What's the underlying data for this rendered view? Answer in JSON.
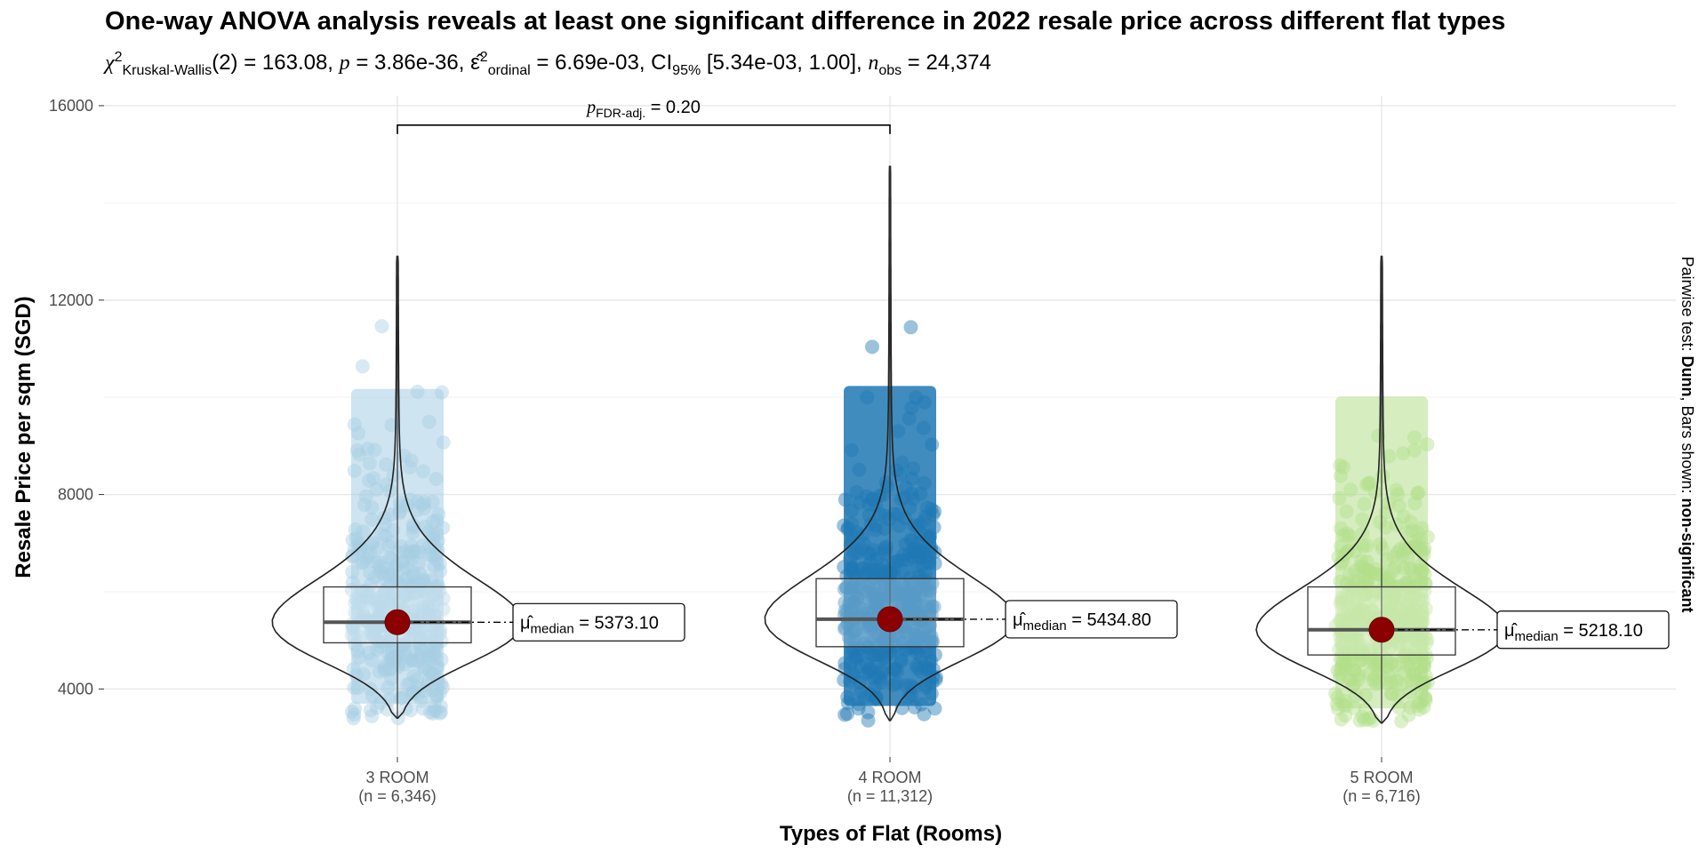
{
  "title": "One-way ANOVA analysis reveals at least one significant difference in 2022 resale price across different flat types",
  "subtitle": {
    "chi_symbol": "χ",
    "chi_sup": "2",
    "chi_sub": "Kruskal-Wallis",
    "df_text": "(2) = 163.08, ",
    "p_symbol": "p",
    "p_text": " = 3.86e-36, ",
    "eps_symbol": "ε̂",
    "eps_sup": "2",
    "eps_sub": "ordinal",
    "eps_text": " = 6.69e-03, CI",
    "ci_sub": "95%",
    "ci_text": " [5.34e-03, 1.00], ",
    "n_symbol": "n",
    "n_sub": "obs",
    "n_text": " = 24,374"
  },
  "caption": {
    "prefix": "Pairwise test: ",
    "test": "Dunn",
    "middle": ", Bars shown: ",
    "shown": "non-significant"
  },
  "pairwise": {
    "p_symbol": "p",
    "p_sub": "FDR-adj.",
    "p_text": " = 0.20"
  },
  "chart_data": {
    "type": "violin-box-scatter",
    "title": "One-way ANOVA analysis reveals at least one significant difference in 2022 resale price across different flat types",
    "xlabel": "Types of Flat (Rooms)",
    "ylabel": "Resale Price per sqm (SGD)",
    "ylim": [
      2600,
      16200
    ],
    "yticks": [
      4000,
      8000,
      12000,
      16000
    ],
    "grid": true,
    "categories": [
      "3 ROOM",
      "4 ROOM",
      "5 ROOM"
    ],
    "n_labels": [
      "(n = 6,346)",
      "(n = 11,312)",
      "(n = 6,716)"
    ],
    "colors": [
      "#a6cee3",
      "#1f78b4",
      "#b2df8a"
    ],
    "median_point_color": "#8b0000",
    "groups": [
      {
        "name": "3 ROOM",
        "n": 6346,
        "median": 5373.1,
        "q1": 4950,
        "q3": 6100,
        "min": 3400,
        "max": 12900,
        "median_label": "= 5373.10"
      },
      {
        "name": "4 ROOM",
        "n": 11312,
        "median": 5434.8,
        "q1": 4870,
        "q3": 6270,
        "min": 3350,
        "max": 14750,
        "median_label": "= 5434.80"
      },
      {
        "name": "5 ROOM",
        "n": 6716,
        "median": 5218.1,
        "q1": 4700,
        "q3": 6100,
        "min": 3300,
        "max": 12900,
        "median_label": "= 5218.10"
      }
    ],
    "median_label_symbol": "μ̂",
    "median_label_sub": "median",
    "comparisons": [
      {
        "groups": [
          "3 ROOM",
          "4 ROOM"
        ],
        "p_fdr_adj": 0.2,
        "y": 15600
      }
    ]
  }
}
